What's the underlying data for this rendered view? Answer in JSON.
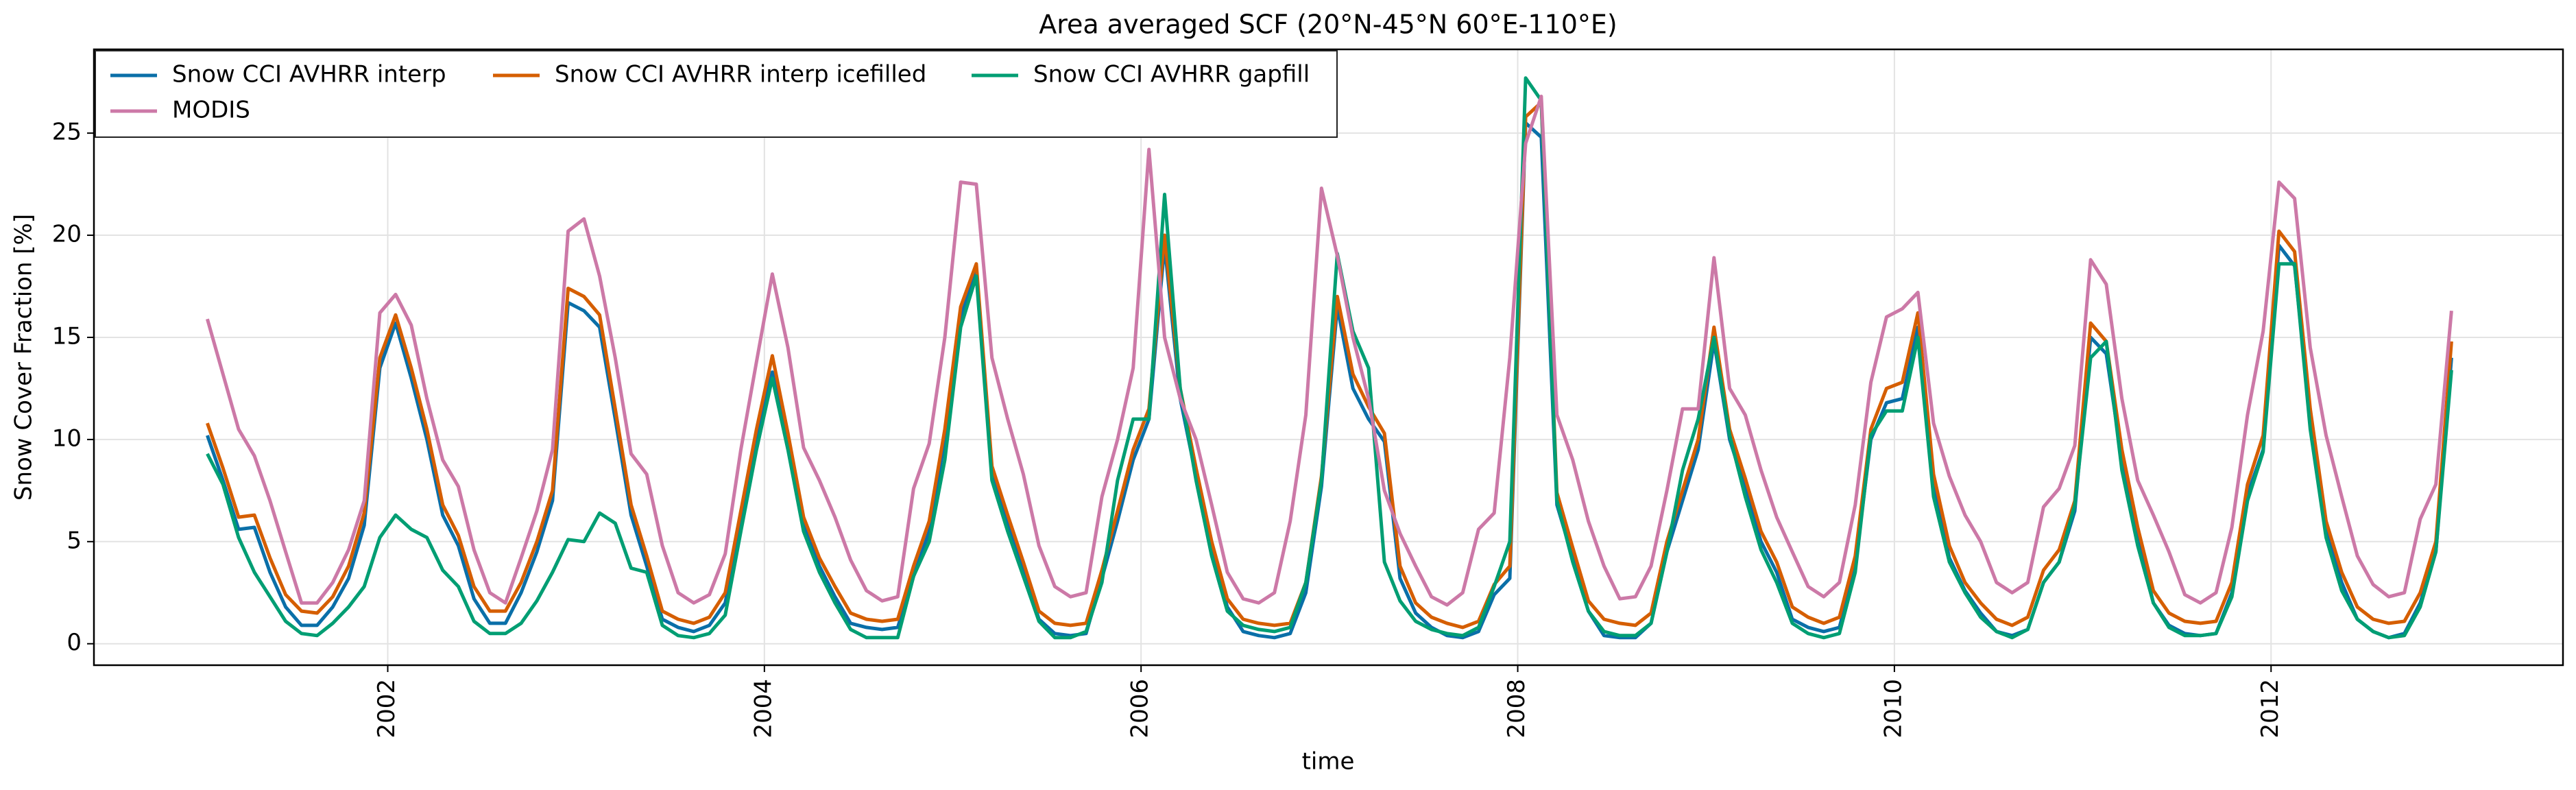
{
  "chart_data": {
    "type": "line",
    "title": "Area averaged SCF (20°N-45°N 60°E-110°E)",
    "xlabel": "time",
    "ylabel": "Snow Cover Fraction [%]",
    "x": [
      2001.042,
      2001.125,
      2001.208,
      2001.292,
      2001.375,
      2001.458,
      2001.542,
      2001.625,
      2001.708,
      2001.792,
      2001.875,
      2001.958,
      2002.042,
      2002.125,
      2002.208,
      2002.292,
      2002.375,
      2002.458,
      2002.542,
      2002.625,
      2002.708,
      2002.792,
      2002.875,
      2002.958,
      2003.042,
      2003.125,
      2003.208,
      2003.292,
      2003.375,
      2003.458,
      2003.542,
      2003.625,
      2003.708,
      2003.792,
      2003.875,
      2003.958,
      2004.042,
      2004.125,
      2004.208,
      2004.292,
      2004.375,
      2004.458,
      2004.542,
      2004.625,
      2004.708,
      2004.792,
      2004.875,
      2004.958,
      2005.042,
      2005.125,
      2005.208,
      2005.292,
      2005.375,
      2005.458,
      2005.542,
      2005.625,
      2005.708,
      2005.792,
      2005.875,
      2005.958,
      2006.042,
      2006.125,
      2006.208,
      2006.292,
      2006.375,
      2006.458,
      2006.542,
      2006.625,
      2006.708,
      2006.792,
      2006.875,
      2006.958,
      2007.042,
      2007.125,
      2007.208,
      2007.292,
      2007.375,
      2007.458,
      2007.542,
      2007.625,
      2007.708,
      2007.792,
      2007.875,
      2007.958,
      2008.042,
      2008.125,
      2008.208,
      2008.292,
      2008.375,
      2008.458,
      2008.542,
      2008.625,
      2008.708,
      2008.792,
      2008.875,
      2008.958,
      2009.042,
      2009.125,
      2009.208,
      2009.292,
      2009.375,
      2009.458,
      2009.542,
      2009.625,
      2009.708,
      2009.792,
      2009.875,
      2009.958,
      2010.042,
      2010.125,
      2010.208,
      2010.292,
      2010.375,
      2010.458,
      2010.542,
      2010.625,
      2010.708,
      2010.792,
      2010.875,
      2010.958,
      2011.042,
      2011.125,
      2011.208,
      2011.292,
      2011.375,
      2011.458,
      2011.542,
      2011.625,
      2011.708,
      2011.792,
      2011.875,
      2011.958,
      2012.042,
      2012.125,
      2012.208,
      2012.292,
      2012.375,
      2012.458,
      2012.542,
      2012.625,
      2012.708,
      2012.792,
      2012.875,
      2012.958
    ],
    "series": [
      {
        "name": "Snow CCI AVHRR interp",
        "color": "#0a6fa8",
        "values": [
          10.2,
          8.0,
          5.6,
          5.7,
          3.5,
          1.8,
          0.9,
          0.9,
          1.8,
          3.2,
          5.8,
          13.5,
          15.7,
          13.0,
          10.0,
          6.3,
          4.8,
          2.2,
          1.0,
          1.0,
          2.5,
          4.5,
          7.0,
          16.7,
          16.3,
          15.5,
          11.0,
          6.3,
          3.8,
          1.2,
          0.8,
          0.6,
          0.9,
          2.0,
          6.0,
          10.0,
          13.3,
          9.8,
          5.8,
          3.8,
          2.3,
          1.0,
          0.8,
          0.7,
          0.8,
          3.3,
          5.5,
          10.0,
          16.0,
          18.2,
          8.3,
          5.9,
          3.6,
          1.2,
          0.5,
          0.4,
          0.5,
          3.2,
          6.0,
          9.0,
          11.0,
          19.5,
          12.0,
          8.2,
          4.6,
          1.8,
          0.6,
          0.4,
          0.3,
          0.5,
          2.5,
          7.7,
          16.5,
          12.5,
          11.0,
          9.9,
          3.2,
          1.5,
          0.8,
          0.4,
          0.3,
          0.6,
          2.4,
          3.2,
          25.5,
          24.8,
          6.8,
          4.2,
          1.6,
          0.4,
          0.3,
          0.3,
          1.0,
          4.5,
          7.0,
          9.5,
          14.8,
          10.0,
          7.6,
          5.0,
          3.5,
          1.2,
          0.8,
          0.6,
          0.8,
          3.8,
          10.0,
          11.8,
          12.0,
          15.5,
          7.8,
          4.2,
          2.6,
          1.5,
          0.6,
          0.4,
          0.7,
          3.0,
          4.0,
          6.5,
          15.0,
          14.2,
          9.0,
          5.2,
          2.0,
          0.9,
          0.5,
          0.4,
          0.5,
          2.5,
          7.3,
          9.5,
          19.5,
          18.5,
          11.0,
          5.5,
          3.0,
          1.2,
          0.6,
          0.3,
          0.5,
          2.0,
          4.5,
          14.0
        ]
      },
      {
        "name": "Snow CCI AVHRR interp icefilled",
        "color": "#d55e00",
        "values": [
          10.8,
          8.6,
          6.2,
          6.3,
          4.2,
          2.4,
          1.6,
          1.5,
          2.3,
          3.8,
          6.4,
          14.0,
          16.1,
          13.5,
          10.5,
          6.8,
          5.3,
          2.8,
          1.6,
          1.6,
          3.0,
          5.0,
          7.5,
          17.4,
          17.0,
          16.1,
          11.5,
          6.8,
          4.3,
          1.6,
          1.2,
          1.0,
          1.3,
          2.5,
          6.5,
          10.5,
          14.1,
          10.3,
          6.2,
          4.2,
          2.8,
          1.5,
          1.2,
          1.1,
          1.2,
          3.8,
          6.0,
          10.5,
          16.5,
          18.6,
          8.7,
          6.3,
          4.0,
          1.6,
          1.0,
          0.9,
          1.0,
          3.6,
          6.5,
          9.5,
          11.5,
          20.0,
          12.5,
          8.6,
          5.0,
          2.2,
          1.2,
          1.0,
          0.9,
          1.0,
          3.0,
          8.2,
          17.0,
          13.2,
          11.6,
          10.3,
          3.8,
          2.0,
          1.3,
          1.0,
          0.8,
          1.1,
          2.9,
          3.8,
          25.8,
          26.5,
          7.4,
          4.7,
          2.1,
          1.2,
          1.0,
          0.9,
          1.5,
          5.0,
          7.5,
          10.0,
          15.5,
          10.5,
          8.1,
          5.5,
          4.0,
          1.8,
          1.3,
          1.0,
          1.3,
          4.3,
          10.5,
          12.5,
          12.8,
          16.2,
          8.3,
          4.8,
          3.0,
          2.0,
          1.2,
          0.9,
          1.3,
          3.6,
          4.6,
          7.0,
          15.7,
          14.8,
          9.5,
          5.7,
          2.6,
          1.5,
          1.1,
          1.0,
          1.1,
          3.0,
          7.8,
          10.2,
          20.2,
          19.2,
          11.5,
          6.0,
          3.5,
          1.8,
          1.2,
          1.0,
          1.1,
          2.5,
          5.0,
          14.8
        ]
      },
      {
        "name": "Snow CCI AVHRR gapfill",
        "color": "#009e73",
        "values": [
          9.3,
          7.8,
          5.2,
          3.5,
          2.3,
          1.1,
          0.5,
          0.4,
          1.0,
          1.8,
          2.8,
          5.2,
          6.3,
          5.6,
          5.2,
          3.6,
          2.8,
          1.1,
          0.5,
          0.5,
          1.0,
          2.1,
          3.5,
          5.1,
          5.0,
          6.4,
          5.9,
          3.7,
          3.5,
          0.9,
          0.4,
          0.3,
          0.5,
          1.4,
          5.5,
          9.5,
          13.0,
          9.5,
          5.5,
          3.5,
          2.0,
          0.7,
          0.3,
          0.3,
          0.3,
          3.3,
          5.0,
          9.0,
          15.5,
          18.0,
          8.0,
          5.5,
          3.3,
          1.1,
          0.3,
          0.3,
          0.6,
          3.0,
          8.0,
          11.0,
          11.0,
          22.0,
          12.5,
          8.0,
          4.3,
          1.6,
          0.9,
          0.7,
          0.6,
          0.8,
          3.0,
          8.0,
          19.1,
          15.3,
          13.5,
          4.0,
          2.1,
          1.1,
          0.7,
          0.5,
          0.4,
          0.8,
          2.8,
          5.0,
          27.7,
          26.6,
          7.0,
          4.0,
          1.6,
          0.6,
          0.4,
          0.4,
          1.0,
          4.5,
          8.5,
          11.0,
          15.0,
          10.2,
          7.2,
          4.6,
          3.0,
          1.0,
          0.5,
          0.3,
          0.5,
          3.5,
          10.2,
          11.4,
          11.4,
          15.0,
          7.2,
          4.0,
          2.5,
          1.3,
          0.6,
          0.3,
          0.7,
          3.0,
          4.0,
          6.8,
          14.0,
          14.8,
          8.5,
          4.8,
          2.0,
          0.8,
          0.4,
          0.4,
          0.5,
          2.3,
          7.0,
          9.4,
          18.6,
          18.6,
          10.5,
          5.2,
          2.6,
          1.2,
          0.6,
          0.3,
          0.4,
          1.8,
          4.5,
          13.4
        ]
      },
      {
        "name": "MODIS",
        "color": "#cc79a7",
        "values": [
          15.9,
          13.2,
          10.5,
          9.2,
          7.0,
          4.5,
          2.0,
          2.0,
          3.0,
          4.6,
          7.0,
          16.2,
          17.1,
          15.6,
          12.0,
          9.0,
          7.7,
          4.6,
          2.5,
          2.0,
          4.2,
          6.5,
          9.5,
          20.2,
          20.8,
          18.0,
          14.0,
          9.3,
          8.3,
          4.8,
          2.5,
          2.0,
          2.4,
          4.4,
          9.5,
          13.8,
          18.1,
          14.5,
          9.6,
          8.0,
          6.2,
          4.1,
          2.6,
          2.1,
          2.3,
          7.6,
          9.8,
          15.0,
          22.6,
          22.5,
          14.0,
          11.0,
          8.3,
          4.8,
          2.8,
          2.3,
          2.5,
          7.2,
          10.0,
          13.5,
          24.2,
          15.0,
          12.0,
          10.0,
          6.8,
          3.5,
          2.2,
          2.0,
          2.5,
          6.0,
          11.2,
          22.3,
          19.0,
          15.0,
          12.0,
          7.5,
          5.4,
          3.8,
          2.3,
          1.9,
          2.5,
          5.6,
          6.4,
          14.0,
          24.5,
          26.8,
          11.2,
          9.0,
          6.0,
          3.8,
          2.2,
          2.3,
          3.8,
          7.5,
          11.5,
          11.5,
          18.9,
          12.5,
          11.2,
          8.5,
          6.2,
          4.5,
          2.8,
          2.3,
          3.0,
          6.8,
          12.8,
          16.0,
          16.4,
          17.2,
          10.8,
          8.2,
          6.3,
          5.0,
          3.0,
          2.5,
          3.0,
          6.7,
          7.6,
          9.7,
          18.8,
          17.6,
          12.0,
          8.0,
          6.3,
          4.5,
          2.4,
          2.0,
          2.5,
          5.7,
          11.2,
          15.3,
          22.6,
          21.8,
          14.5,
          10.2,
          7.2,
          4.3,
          2.9,
          2.3,
          2.5,
          6.1,
          7.8,
          16.3
        ]
      }
    ],
    "xlim": [
      2000.44,
      2013.55
    ],
    "xticks": [
      2002,
      2004,
      2006,
      2008,
      2010,
      2012
    ],
    "ylim": [
      -1.05,
      29.1
    ],
    "yticks": [
      0,
      5,
      10,
      15,
      20,
      25
    ],
    "grid": true,
    "legend": "upper left"
  }
}
